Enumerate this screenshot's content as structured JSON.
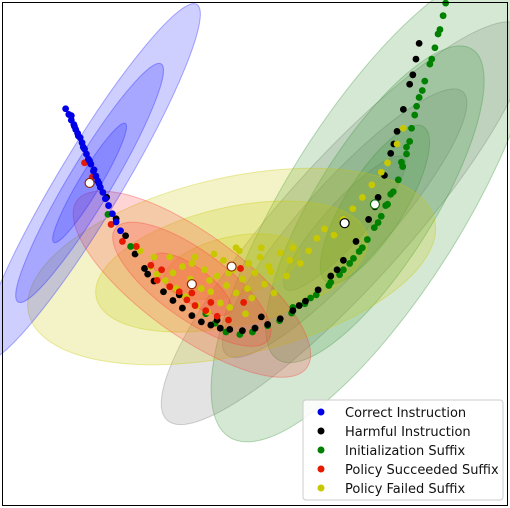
{
  "chart_data": {
    "type": "scatter",
    "title": "",
    "xlabel": "",
    "ylabel": "",
    "xlim": [
      -4.0,
      4.0
    ],
    "ylim": [
      -4.0,
      4.0
    ],
    "axes_ticks_visible": false,
    "grid": false,
    "legend_position": "bottom-right",
    "series": [
      {
        "name": "Correct Instruction",
        "color": "#0000e6",
        "mean": [
          -2.62,
          1.13
        ],
        "points": [
          [
            -3.0,
            2.31
          ],
          [
            -2.95,
            2.22
          ],
          [
            -2.91,
            2.13
          ],
          [
            -2.87,
            2.06
          ],
          [
            -2.84,
            1.98
          ],
          [
            -2.81,
            1.92
          ],
          [
            -2.77,
            1.85
          ],
          [
            -2.74,
            1.77
          ],
          [
            -2.7,
            1.67
          ],
          [
            -2.67,
            1.59
          ],
          [
            -2.64,
            1.51
          ],
          [
            -2.6,
            1.43
          ],
          [
            -2.56,
            1.32
          ],
          [
            -2.52,
            1.24
          ],
          [
            -2.49,
            1.16
          ],
          [
            -2.45,
            1.06
          ],
          [
            -2.41,
            0.98
          ],
          [
            -2.37,
            0.88
          ],
          [
            -2.32,
            0.77
          ],
          [
            -2.26,
            0.64
          ],
          [
            -2.2,
            0.51
          ],
          [
            -2.13,
            0.37
          ],
          [
            -2.91,
            2.2
          ],
          [
            -2.86,
            2.03
          ],
          [
            -2.8,
            1.88
          ],
          [
            -2.72,
            1.7
          ],
          [
            -2.62,
            1.48
          ],
          [
            -2.55,
            1.34
          ],
          [
            -2.47,
            1.12
          ]
        ],
        "ellipses": [
          {
            "sigma": 1,
            "center": [
              -2.62,
              1.13
            ],
            "semi_axes": [
              1.1,
              0.17
            ],
            "angle_deg": 59
          },
          {
            "sigma": 2,
            "center": [
              -2.62,
              1.13
            ],
            "semi_axes": [
              2.2,
              0.34
            ],
            "angle_deg": 59
          },
          {
            "sigma": 3,
            "center": [
              -2.62,
              1.13
            ],
            "semi_axes": [
              3.3,
              0.51
            ],
            "angle_deg": 59
          }
        ]
      },
      {
        "name": "Harmful Instruction",
        "color": "#000000",
        "mean": [
          1.42,
          0.49
        ],
        "points": [
          [
            -2.35,
            0.9
          ],
          [
            -2.2,
            0.56
          ],
          [
            -2.05,
            0.29
          ],
          [
            -1.9,
            0.0
          ],
          [
            -1.75,
            -0.23
          ],
          [
            -1.6,
            -0.43
          ],
          [
            -1.45,
            -0.6
          ],
          [
            -1.3,
            -0.74
          ],
          [
            -1.15,
            -0.86
          ],
          [
            -1.0,
            -0.98
          ],
          [
            -0.85,
            -1.08
          ],
          [
            -0.7,
            -1.13
          ],
          [
            -0.55,
            -1.18
          ],
          [
            -0.4,
            -1.2
          ],
          [
            -0.2,
            -1.22
          ],
          [
            0.0,
            -1.18
          ],
          [
            0.2,
            -1.12
          ],
          [
            0.4,
            -1.03
          ],
          [
            0.6,
            -0.9
          ],
          [
            0.8,
            -0.75
          ],
          [
            1.0,
            -0.57
          ],
          [
            1.2,
            -0.35
          ],
          [
            1.4,
            -0.1
          ],
          [
            1.6,
            0.2
          ],
          [
            1.8,
            0.55
          ],
          [
            1.95,
            0.9
          ],
          [
            2.05,
            1.25
          ],
          [
            2.15,
            1.6
          ],
          [
            2.25,
            1.95
          ],
          [
            2.35,
            2.3
          ],
          [
            2.45,
            2.7
          ],
          [
            2.55,
            3.1
          ],
          [
            2.6,
            3.35
          ],
          [
            -1.7,
            -0.32
          ],
          [
            -1.2,
            -0.65
          ],
          [
            -0.6,
            -1.05
          ],
          [
            0.1,
            -1.0
          ],
          [
            0.7,
            -0.82
          ],
          [
            1.3,
            -0.25
          ],
          [
            1.9,
            0.75
          ],
          [
            2.2,
            1.75
          ],
          [
            2.5,
            2.85
          ]
        ],
        "ellipses": [
          {
            "sigma": 1,
            "center": [
              1.42,
              0.49
            ],
            "semi_axes": [
              1.4,
              0.33
            ],
            "angle_deg": 48
          },
          {
            "sigma": 2,
            "center": [
              1.42,
              0.49
            ],
            "semi_axes": [
              2.8,
              0.66
            ],
            "angle_deg": 48
          },
          {
            "sigma": 3,
            "center": [
              1.42,
              0.49
            ],
            "semi_axes": [
              4.2,
              0.99
            ],
            "angle_deg": 48
          }
        ]
      },
      {
        "name": "Initialization Suffix",
        "color": "#008000",
        "mean": [
          1.9,
          0.79
        ],
        "points": [
          [
            3.08,
            4.37
          ],
          [
            3.05,
            4.18
          ],
          [
            3.02,
            3.99
          ],
          [
            2.98,
            3.79
          ],
          [
            2.93,
            3.57
          ],
          [
            2.85,
            3.28
          ],
          [
            2.77,
            3.02
          ],
          [
            2.69,
            2.75
          ],
          [
            2.6,
            2.49
          ],
          [
            2.53,
            2.21
          ],
          [
            2.48,
            2.0
          ],
          [
            2.45,
            1.79
          ],
          [
            2.4,
            1.59
          ],
          [
            2.34,
            1.39
          ],
          [
            2.27,
            1.18
          ],
          [
            2.19,
            0.99
          ],
          [
            2.1,
            0.79
          ],
          [
            2.0,
            0.6
          ],
          [
            1.89,
            0.42
          ],
          [
            1.78,
            0.23
          ],
          [
            1.65,
            0.04
          ],
          [
            1.5,
            -0.15
          ],
          [
            1.34,
            -0.33
          ],
          [
            1.17,
            -0.5
          ],
          [
            0.97,
            -0.65
          ],
          [
            0.79,
            -0.79
          ],
          [
            0.58,
            -0.94
          ],
          [
            0.39,
            -1.06
          ],
          [
            0.2,
            -1.14
          ],
          [
            -0.04,
            -1.24
          ],
          [
            -0.24,
            -1.28
          ],
          [
            -0.46,
            -1.24
          ],
          [
            -0.63,
            -1.1
          ],
          [
            -0.78,
            -0.95
          ],
          [
            2.9,
            3.5
          ],
          [
            2.65,
            2.6
          ],
          [
            2.4,
            1.7
          ],
          [
            2.15,
            0.95
          ],
          [
            1.7,
            0.1
          ],
          [
            1.2,
            -0.45
          ],
          [
            0.6,
            -0.85
          ],
          [
            0.0,
            -1.18
          ],
          [
            2.32,
            1.46
          ],
          [
            2.07,
            0.77
          ],
          [
            1.56,
            -0.07
          ],
          [
            0.88,
            -0.7
          ],
          [
            2.56,
            2.35
          ],
          [
            2.8,
            3.1
          ],
          [
            1.95,
            0.5
          ],
          [
            1.4,
            -0.25
          ],
          [
            -2.33,
            0.63
          ],
          [
            -1.97,
            0.12
          ]
        ],
        "ellipses": [
          {
            "sigma": 1,
            "center": [
              1.9,
              0.79
            ],
            "semi_axes": [
              1.45,
              0.47
            ],
            "angle_deg": 58
          },
          {
            "sigma": 2,
            "center": [
              1.9,
              0.79
            ],
            "semi_axes": [
              2.9,
              0.94
            ],
            "angle_deg": 58
          },
          {
            "sigma": 3,
            "center": [
              1.9,
              0.79
            ],
            "semi_axes": [
              4.35,
              1.41
            ],
            "angle_deg": 58
          }
        ]
      },
      {
        "name": "Policy Succeeded Suffix",
        "color": "#e61a00",
        "mean": [
          -1.0,
          -0.48
        ],
        "points": [
          [
            -2.7,
            1.45
          ],
          [
            -2.58,
            1.22
          ],
          [
            -2.28,
            0.47
          ],
          [
            -2.1,
            0.2
          ],
          [
            -1.88,
            0.12
          ],
          [
            -1.65,
            -0.18
          ],
          [
            -1.48,
            -0.25
          ],
          [
            -1.35,
            -0.52
          ],
          [
            -1.2,
            -0.6
          ],
          [
            -1.08,
            -0.73
          ],
          [
            -0.95,
            -0.82
          ],
          [
            -0.78,
            -0.9
          ],
          [
            -0.6,
            -0.99
          ],
          [
            -0.42,
            -1.05
          ],
          [
            -1.55,
            -0.42
          ],
          [
            -1.0,
            -0.62
          ],
          [
            -0.7,
            -0.77
          ],
          [
            -0.23,
            -0.23
          ],
          [
            -0.18,
            -0.77
          ]
        ],
        "ellipses": [
          {
            "sigma": 1,
            "center": [
              -1.0,
              -0.48
            ],
            "semi_axes": [
              0.75,
              0.27
            ],
            "angle_deg": -36
          },
          {
            "sigma": 2,
            "center": [
              -1.0,
              -0.48
            ],
            "semi_axes": [
              1.5,
              0.54
            ],
            "angle_deg": -36
          },
          {
            "sigma": 3,
            "center": [
              -1.0,
              -0.48
            ],
            "semi_axes": [
              2.25,
              0.81
            ],
            "angle_deg": -36
          }
        ]
      },
      {
        "name": "Policy Failed Suffix",
        "color": "#c8c800",
        "mean": [
          -0.37,
          -0.2
        ],
        "points": [
          [
            -1.82,
            0.05
          ],
          [
            -1.65,
            -0.2
          ],
          [
            -1.55,
            -0.32
          ],
          [
            -1.42,
            -0.42
          ],
          [
            -1.3,
            -0.3
          ],
          [
            -1.25,
            -0.55
          ],
          [
            -1.15,
            -0.2
          ],
          [
            -1.1,
            -0.68
          ],
          [
            -1.02,
            -0.4
          ],
          [
            -0.95,
            -0.05
          ],
          [
            -0.92,
            -0.82
          ],
          [
            -0.85,
            -0.55
          ],
          [
            -0.8,
            -0.25
          ],
          [
            -0.75,
            -0.92
          ],
          [
            -0.7,
            -0.6
          ],
          [
            -0.65,
            0.0
          ],
          [
            -0.6,
            -0.35
          ],
          [
            -0.55,
            -0.78
          ],
          [
            -0.5,
            -0.1
          ],
          [
            -0.45,
            -0.5
          ],
          [
            -0.4,
            -0.85
          ],
          [
            -0.35,
            -0.25
          ],
          [
            -0.3,
            -0.62
          ],
          [
            -0.25,
            0.05
          ],
          [
            -0.2,
            -0.4
          ],
          [
            -0.15,
            -0.95
          ],
          [
            -0.1,
            -0.15
          ],
          [
            -0.05,
            -0.7
          ],
          [
            0.0,
            -0.3
          ],
          [
            0.08,
            -0.05
          ],
          [
            0.15,
            -0.48
          ],
          [
            0.22,
            -0.2
          ],
          [
            0.3,
            -0.62
          ],
          [
            0.4,
            0.02
          ],
          [
            0.5,
            -0.35
          ],
          [
            0.6,
            0.1
          ],
          [
            0.72,
            -0.15
          ],
          [
            0.85,
            0.05
          ],
          [
            0.98,
            0.25
          ],
          [
            1.1,
            0.4
          ],
          [
            1.25,
            0.3
          ],
          [
            1.4,
            0.55
          ],
          [
            1.55,
            0.72
          ],
          [
            1.7,
            0.9
          ],
          [
            1.85,
            1.1
          ],
          [
            2.0,
            1.3
          ],
          [
            2.1,
            1.45
          ],
          [
            2.25,
            1.75
          ],
          [
            2.35,
            2.0
          ],
          [
            -1.35,
            -0.05
          ],
          [
            -1.0,
            -0.15
          ],
          [
            -0.72,
            -0.42
          ],
          [
            -0.42,
            -0.3
          ],
          [
            -0.12,
            -0.55
          ],
          [
            0.25,
            -0.28
          ],
          [
            0.55,
            -0.1
          ],
          [
            -1.6,
            -0.05
          ],
          [
            -0.3,
            0.1
          ],
          [
            0.1,
            0.1
          ]
        ],
        "ellipses": [
          {
            "sigma": 1,
            "center": [
              -0.37,
              -0.2
            ],
            "semi_axes": [
              1.1,
              0.47
            ],
            "angle_deg": 13
          },
          {
            "sigma": 2,
            "center": [
              -0.37,
              -0.2
            ],
            "semi_axes": [
              2.2,
              0.94
            ],
            "angle_deg": 13
          },
          {
            "sigma": 3,
            "center": [
              -0.37,
              -0.2
            ],
            "semi_axes": [
              3.3,
              1.41
            ],
            "angle_deg": 13
          }
        ]
      }
    ]
  },
  "legend": {
    "items": [
      {
        "label": "Correct Instruction",
        "color": "#0000e6"
      },
      {
        "label": "Harmful Instruction",
        "color": "#000000"
      },
      {
        "label": "Initialization Suffix",
        "color": "#008000"
      },
      {
        "label": "Policy Succeeded Suffix",
        "color": "#e61a00"
      },
      {
        "label": "Policy Failed Suffix",
        "color": "#c8c800"
      }
    ]
  }
}
